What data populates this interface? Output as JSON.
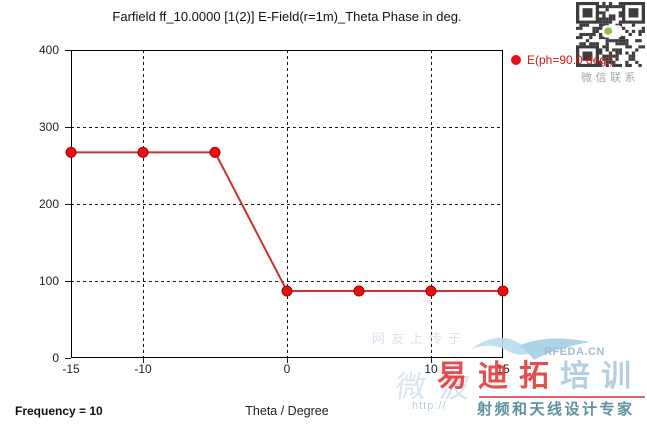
{
  "title": "Farfield ff_10.0000 [1(2)] E-Field(r=1m)_Theta Phase in deg.",
  "legend": {
    "label": "E(ph=90.0 deg.)",
    "marker_color": "#e81111",
    "text_color": "#e01515"
  },
  "footer": {
    "frequency_label": "Frequency = 10",
    "x_axis_title": "Theta / Degree"
  },
  "chart_data": {
    "type": "line",
    "title": "Farfield ff_10.0000 [1(2)] E-Field(r=1m)_Theta Phase in deg.",
    "xlabel": "Theta / Degree",
    "ylabel": "",
    "x": [
      -15,
      -10,
      -5,
      0,
      5,
      10,
      15
    ],
    "series": [
      {
        "name": "E(ph=90.0 deg.)",
        "values": [
          267,
          267,
          267,
          87,
          87,
          87,
          87
        ]
      }
    ],
    "xlim": [
      -15,
      15
    ],
    "ylim": [
      0,
      400
    ],
    "x_tick_labels": [
      -15,
      -10,
      0,
      10,
      15
    ],
    "y_tick_labels": [
      0,
      100,
      200,
      300,
      400
    ],
    "x_gridlines": [
      -10,
      0,
      10
    ],
    "y_gridlines": [
      100,
      200,
      300
    ],
    "grid_style": "dashed",
    "legend_position": "right-top",
    "line_color": "#c83232",
    "marker_color": "#e41212",
    "marker_edge_color": "#b00000",
    "border_color": "#000000",
    "grid_color": "#1a1a1a"
  },
  "watermarks": {
    "qr_caption": "微信联系",
    "faint_text": "网友上传于",
    "brand_site": "RFEDA.CN",
    "brand_name_red": "易迪拓",
    "brand_name_blue": "培训",
    "url_prefix": "http://",
    "slogan": "射频和天线设计专家",
    "faint_brand": "微波",
    "colors": {
      "red": "#e22e2e",
      "teal": "#4b8794",
      "lightblue": "#a6c6dc"
    }
  }
}
